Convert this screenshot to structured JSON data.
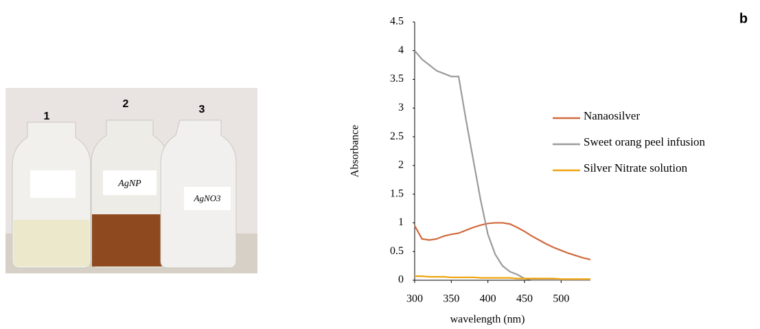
{
  "panel_label": "b",
  "photo": {
    "labels": [
      "1",
      "2",
      "3"
    ],
    "tags": [
      "AgNP",
      "AgNO3"
    ]
  },
  "chart_data": {
    "type": "line",
    "x_label": "wavelength (nm)",
    "y_label": "Absorbance",
    "x": [
      300,
      310,
      320,
      330,
      340,
      350,
      360,
      370,
      380,
      390,
      400,
      410,
      420,
      430,
      440,
      450,
      460,
      470,
      480,
      490,
      500,
      510,
      520,
      530,
      540
    ],
    "series": [
      {
        "name": "Nanaosilver",
        "color": "#d0693a",
        "values": [
          0.95,
          0.72,
          0.7,
          0.72,
          0.77,
          0.8,
          0.82,
          0.87,
          0.92,
          0.96,
          0.99,
          1.0,
          1.0,
          0.98,
          0.92,
          0.85,
          0.77,
          0.7,
          0.63,
          0.57,
          0.52,
          0.47,
          0.43,
          0.39,
          0.36
        ]
      },
      {
        "name": "Sweet orang peel infusion",
        "color": "#9a9a9a",
        "values": [
          4.0,
          3.85,
          3.75,
          3.65,
          3.6,
          3.55,
          3.55,
          2.8,
          2.1,
          1.4,
          0.8,
          0.45,
          0.25,
          0.15,
          0.1,
          0.03,
          0.01,
          0.01,
          0.01,
          0.01,
          0.01,
          0.01,
          0.01,
          0.01,
          0.01
        ]
      },
      {
        "name": "Silver Nitrate solution",
        "color": "#f0a30a",
        "values": [
          0.07,
          0.07,
          0.06,
          0.06,
          0.06,
          0.05,
          0.05,
          0.05,
          0.05,
          0.04,
          0.04,
          0.04,
          0.04,
          0.04,
          0.03,
          0.03,
          0.03,
          0.03,
          0.03,
          0.03,
          0.02,
          0.02,
          0.02,
          0.02,
          0.02
        ]
      }
    ],
    "xlim": [
      300,
      540
    ],
    "xticks": [
      300,
      350,
      400,
      450,
      500
    ],
    "ylim": [
      0,
      4.5
    ],
    "yticks": [
      0,
      0.5,
      1,
      1.5,
      2,
      2.5,
      3,
      3.5,
      4,
      4.5
    ],
    "grid": false
  }
}
